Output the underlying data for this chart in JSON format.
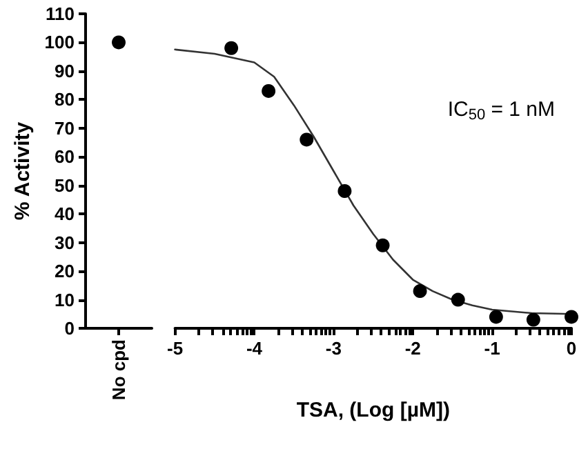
{
  "chart_data": [
    {
      "type": "scatter",
      "ylabel": "% Activity",
      "categories": [
        "No cpd"
      ],
      "series": [
        {
          "color": "#000000",
          "values": [
            100
          ]
        }
      ],
      "ylim": [
        0,
        110
      ],
      "yticks": [
        0,
        10,
        20,
        30,
        40,
        50,
        60,
        70,
        80,
        90,
        100,
        110
      ],
      "grid": false,
      "tick_labels": "xy",
      "marker": "circle"
    },
    {
      "type": "scatter",
      "xlabel": "TSA, (Log [µM])",
      "annotations": [
        "IC$_{50}$ = 1 nM"
      ],
      "x": [
        -4.29,
        -3.82,
        -3.34,
        -2.86,
        -2.38,
        -1.91,
        -1.43,
        -0.95,
        -0.48,
        0
      ],
      "series": [
        {
          "color": "#000000",
          "values": [
            98,
            83,
            66,
            48,
            29,
            13,
            10,
            4,
            3,
            4
          ]
        },
        {
          "type": "line",
          "color": "#333333",
          "marker": "none",
          "line_style": "solid",
          "x": [
            -5,
            -4.5,
            -4,
            -3.75,
            -3.5,
            -3.25,
            -3,
            -2.75,
            -2.5,
            -2.25,
            -2,
            -1.75,
            -1.5,
            -1.25,
            -1,
            -0.5,
            0
          ],
          "values": [
            97.5,
            96,
            93,
            88,
            78,
            67,
            55,
            43,
            33,
            24,
            17,
            13,
            10,
            8,
            6.5,
            5.3,
            5
          ]
        }
      ],
      "xlim": [
        -5,
        0
      ],
      "xticks": [
        -5,
        {
          "value": -4.699,
          "label": null
        },
        {
          "value": -4.523,
          "label": null
        },
        {
          "value": -4.398,
          "label": null
        },
        {
          "value": -4.301,
          "label": null
        },
        {
          "value": -4.222,
          "label": null
        },
        {
          "value": -4.155,
          "label": null
        },
        {
          "value": -4.097,
          "label": null
        },
        {
          "value": -4.046,
          "label": null
        },
        -4,
        {
          "value": -3.699,
          "label": null
        },
        {
          "value": -3.523,
          "label": null
        },
        {
          "value": -3.398,
          "label": null
        },
        {
          "value": -3.301,
          "label": null
        },
        {
          "value": -3.222,
          "label": null
        },
        {
          "value": -3.155,
          "label": null
        },
        {
          "value": -3.097,
          "label": null
        },
        {
          "value": -3.046,
          "label": null
        },
        -3,
        {
          "value": -2.699,
          "label": null
        },
        {
          "value": -2.523,
          "label": null
        },
        {
          "value": -2.398,
          "label": null
        },
        {
          "value": -2.301,
          "label": null
        },
        {
          "value": -2.222,
          "label": null
        },
        {
          "value": -2.155,
          "label": null
        },
        {
          "value": -2.097,
          "label": null
        },
        {
          "value": -2.046,
          "label": null
        },
        -2,
        {
          "value": -1.699,
          "label": null
        },
        {
          "value": -1.523,
          "label": null
        },
        {
          "value": -1.398,
          "label": null
        },
        {
          "value": -1.301,
          "label": null
        },
        {
          "value": -1.222,
          "label": null
        },
        {
          "value": -1.155,
          "label": null
        },
        {
          "value": -1.097,
          "label": null
        },
        {
          "value": -1.046,
          "label": null
        },
        -1,
        {
          "value": -0.699,
          "label": null
        },
        {
          "value": -0.523,
          "label": null
        },
        {
          "value": -0.398,
          "label": null
        },
        {
          "value": -0.301,
          "label": null
        },
        {
          "value": -0.222,
          "label": null
        },
        {
          "value": -0.155,
          "label": null
        },
        {
          "value": -0.097,
          "label": null
        },
        {
          "value": -0.046,
          "label": null
        },
        0
      ],
      "ylim": [
        0,
        110
      ],
      "yticks": [
        0,
        10,
        20,
        30,
        40,
        50,
        60,
        70,
        80,
        90,
        100,
        110
      ],
      "grid": false,
      "tick_labels": "x",
      "marker": "circle"
    }
  ]
}
